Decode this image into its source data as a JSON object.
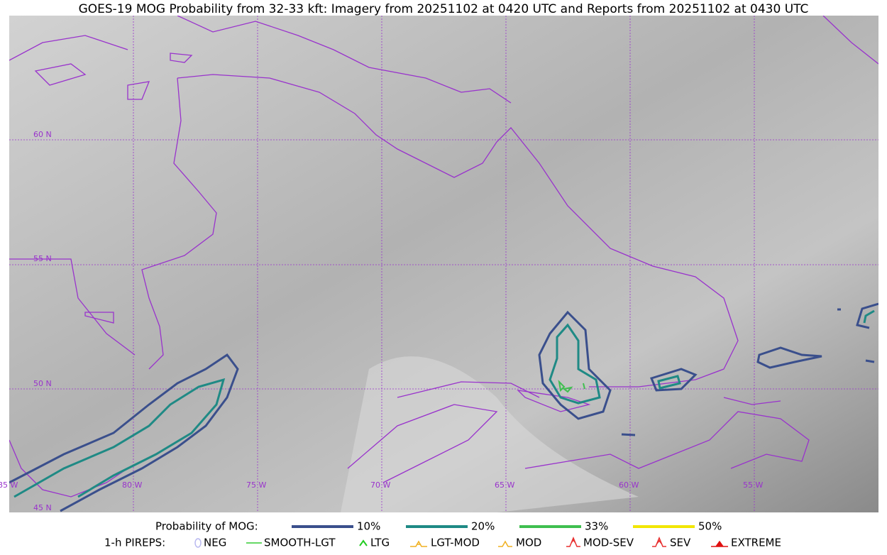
{
  "title": "GOES-19 MOG Probability from 32-33 kft: Imagery from 20251102 at 0420 UTC and Reports from 20251102 at 0430 UTC",
  "map": {
    "lat_labels": [
      "60 N",
      "55 N",
      "50 N",
      "45 N"
    ],
    "lon_labels": [
      "85 W",
      "80 W",
      "75 W",
      "70 W",
      "65 W",
      "60 W",
      "55 W"
    ]
  },
  "legend": {
    "probability": {
      "title": "Probability of MOG:",
      "items": [
        {
          "label": "10%",
          "color": "#3a4f8c"
        },
        {
          "label": "20%",
          "color": "#1f8a85"
        },
        {
          "label": "33%",
          "color": "#3fbf4f"
        },
        {
          "label": "50%",
          "color": "#f2e600"
        }
      ]
    },
    "pireps": {
      "title": "1-h PIREPS:",
      "items": [
        {
          "label": "NEG",
          "color": "#b8b8f0"
        },
        {
          "label": "SMOOTH-LGT",
          "color": "#33cc33"
        },
        {
          "label": "LTG",
          "color": "#22cc22"
        },
        {
          "label": "LGT-MOD",
          "color": "#f0b020"
        },
        {
          "label": "MOD",
          "color": "#f0b020"
        },
        {
          "label": "MOD-SEV",
          "color": "#e83030"
        },
        {
          "label": "SEV",
          "color": "#e83030"
        },
        {
          "label": "EXTREME",
          "color": "#e01010"
        }
      ]
    }
  }
}
